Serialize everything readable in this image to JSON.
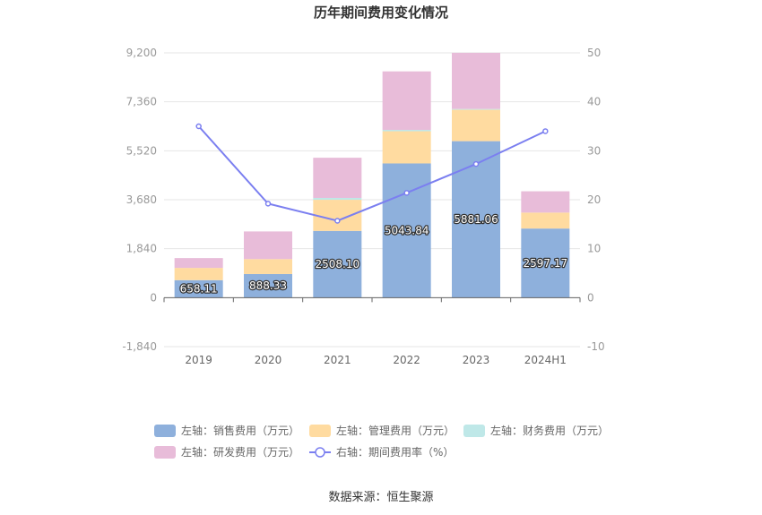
{
  "chart_data": {
    "type": "bar",
    "title": "历年期间费用变化情况",
    "categories": [
      "2019",
      "2020",
      "2021",
      "2022",
      "2023",
      "2024H1"
    ],
    "left_axis": {
      "ticks": [
        "9,200",
        "7,360",
        "5,520",
        "3,680",
        "1,840",
        "0",
        "-1,840"
      ],
      "ylim": [
        -1840,
        9200
      ]
    },
    "right_axis": {
      "ticks": [
        "50",
        "40",
        "30",
        "20",
        "10",
        "0",
        "-10"
      ],
      "ylim": [
        -10,
        50
      ]
    },
    "stack_series": [
      {
        "name": "左轴：销售费用（万元）",
        "color": "#8eb0dc",
        "values": [
          658.11,
          888.33,
          2508.1,
          5043.84,
          5881.06,
          2597.17
        ]
      },
      {
        "name": "左轴：管理费用（万元）",
        "color": "#ffdba0",
        "values": [
          460,
          560,
          1170,
          1210,
          1180,
          600
        ]
      },
      {
        "name": "左轴：财务费用（万元）",
        "color": "#bfe8e8",
        "values": [
          0,
          0,
          70,
          50,
          30,
          0
        ]
      },
      {
        "name": "左轴：研发费用（万元）",
        "color": "#e8bcd9",
        "values": [
          370,
          1040,
          1510,
          2200,
          2110,
          800
        ]
      }
    ],
    "bar_labels": [
      "658.11",
      "888.33",
      "2508.10",
      "5043.84",
      "5881.06",
      "2597.17"
    ],
    "line_series": {
      "name": "右轴：期间费用率（%）",
      "color": "#7b7ff0",
      "values": [
        35.0,
        19.2,
        15.7,
        21.4,
        27.3,
        34.0
      ]
    },
    "legend_placement": "bottom",
    "grid": true
  },
  "source": "数据来源：恒生聚源"
}
